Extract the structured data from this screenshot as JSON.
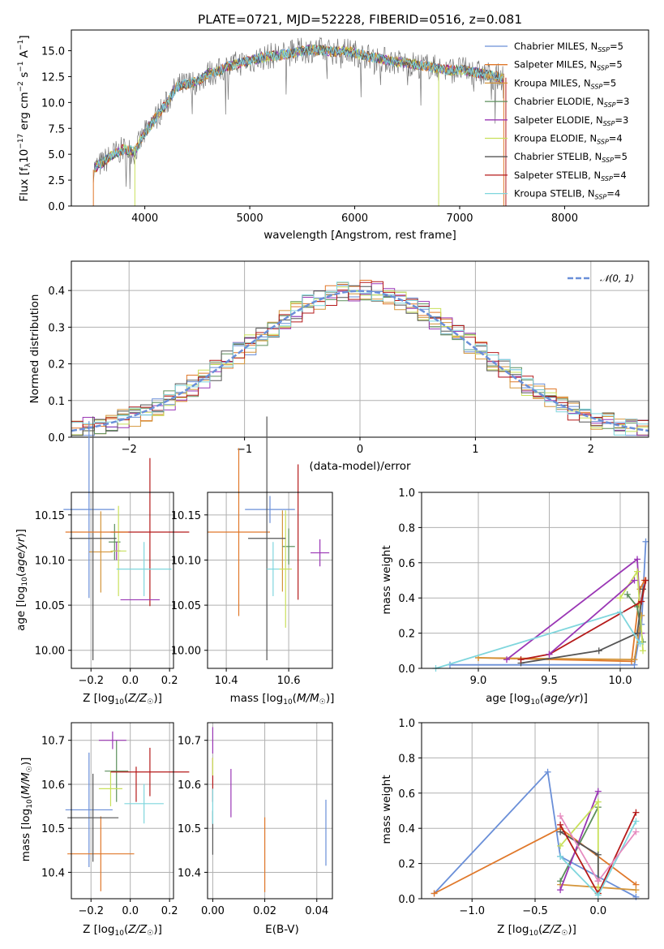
{
  "colors": {
    "axis": "#000000",
    "grid": "#b0b0b0",
    "normal_curve": "#6a8fd8"
  },
  "spectrum_panel": {
    "title": "PLATE=0721, MJD=52228, FIBERID=0516, z=0.081",
    "xlabel": "wavelength [Angstrom, rest frame]",
    "ylabel": "Flux [f_λ 10^-17 erg cm^-2 s^-1 A^-1]",
    "xticks": [
      "4000",
      "5000",
      "6000",
      "7000",
      "8000"
    ],
    "yticks": [
      "0.0",
      "2.5",
      "5.0",
      "7.5",
      "10.0",
      "12.5",
      "15.0"
    ]
  },
  "legend": [
    {
      "model": "Chabrier MILES",
      "n": "5",
      "color": "#6a8fd8"
    },
    {
      "model": "Salpeter MILES",
      "n": "5",
      "color": "#e0782a"
    },
    {
      "model": "Kroupa MILES",
      "n": "5",
      "color": "#d4953a"
    },
    {
      "model": "Chabrier ELODIE",
      "n": "3",
      "color": "#5b8f5b"
    },
    {
      "model": "Salpeter ELODIE",
      "n": "3",
      "color": "#9a36b5"
    },
    {
      "model": "Kroupa ELODIE",
      "n": "4",
      "color": "#c8e05a"
    },
    {
      "model": "Chabrier STELIB",
      "n": "5",
      "color": "#555555"
    },
    {
      "model": "Salpeter STELIB",
      "n": "4",
      "color": "#b51a1a"
    },
    {
      "model": "Kroupa STELIB",
      "n": "4",
      "color": "#7fd6dd"
    }
  ],
  "chart_data": [
    {
      "type": "line",
      "panel": "spectrum",
      "title": "PLATE=0721, MJD=52228, FIBERID=0516, z=0.081",
      "xlabel": "wavelength [Angstrom, rest frame]",
      "ylabel": "Flux [f_λ 10^-17 erg cm^-2 s^-1 A^-1]",
      "xlim": [
        3300,
        8800
      ],
      "ylim": [
        0,
        17
      ],
      "continuum_x": [
        3500,
        3600,
        3700,
        3800,
        3900,
        4000,
        4100,
        4200,
        4300,
        4400,
        4500,
        4600,
        4700,
        4800,
        4900,
        5000,
        5100,
        5200,
        5300,
        5400,
        5500,
        5600,
        5700,
        5800,
        5900,
        6000,
        6100,
        6200,
        6300,
        6400,
        6500,
        6600,
        6700,
        6800,
        6900,
        7000,
        7100,
        7200,
        7300,
        7400
      ],
      "continuum_y": [
        3.5,
        4.2,
        5.0,
        5.5,
        5.2,
        7.0,
        8.5,
        9.8,
        11.5,
        11.8,
        12.0,
        12.8,
        13.0,
        13.5,
        13.8,
        14.0,
        14.3,
        14.5,
        14.6,
        14.8,
        15.0,
        15.1,
        15.0,
        14.9,
        15.0,
        14.8,
        14.5,
        14.3,
        14.1,
        13.9,
        13.8,
        13.6,
        13.5,
        13.3,
        13.1,
        13.2,
        13.0,
        12.8,
        12.6,
        12.4
      ],
      "grid": false
    },
    {
      "type": "line",
      "panel": "residuals",
      "xlabel": "(data-model)/error",
      "ylabel": "Normed distribution",
      "xlim": [
        -2.5,
        2.5
      ],
      "ylim": [
        0,
        0.48
      ],
      "legend": "$\\mathcal{N}(0,1)$",
      "legend_position": "top-right",
      "grid": true
    },
    {
      "type": "scatter",
      "panel": "Z-age",
      "xlabel": "Z [log10(Z/Z☉)]",
      "ylabel": "age [log10(age/yr)]",
      "xlim": [
        -0.3,
        0.22
      ],
      "ylim": [
        9.98,
        10.175
      ],
      "grid": true
    },
    {
      "type": "scatter",
      "panel": "mass-age",
      "xlabel": "mass [log10(M/M☉)]",
      "ylabel": "age [log10(age/yr)]",
      "xlim": [
        10.34,
        10.74
      ],
      "ylim": [
        9.98,
        10.175
      ],
      "grid": true
    },
    {
      "type": "line",
      "panel": "age-massweight",
      "xlabel": "age [log10(age/yr)]",
      "ylabel": "mass weight",
      "xlim": [
        8.6,
        10.2
      ],
      "ylim": [
        0,
        1.0
      ],
      "grid": true
    },
    {
      "type": "scatter",
      "panel": "Z-mass",
      "xlabel": "Z [log10(Z/Z☉)]",
      "ylabel": "mass [log10(M/M☉)]",
      "xlim": [
        -0.3,
        0.22
      ],
      "ylim": [
        10.34,
        10.74
      ],
      "grid": true
    },
    {
      "type": "scatter",
      "panel": "EBV-mass",
      "xlabel": "E(B-V)",
      "ylabel": "",
      "xlim": [
        -0.002,
        0.046
      ],
      "ylim": [
        10.34,
        10.74
      ],
      "grid": true
    },
    {
      "type": "line",
      "panel": "Z-massweight",
      "xlabel": "Z [log10(Z/Z☉)]",
      "ylabel": "mass weight",
      "xlim": [
        -1.4,
        0.4
      ],
      "ylim": [
        0,
        1.0
      ],
      "grid": true
    }
  ],
  "p2": {
    "xticks": [
      "−2",
      "−1",
      "0",
      "1",
      "2"
    ],
    "yticks": [
      "0.0",
      "0.1",
      "0.2",
      "0.3",
      "0.4"
    ],
    "xlabel": "(data-model)/error",
    "ylabel": "Normed distribution",
    "legend_label": "N(0,1)"
  },
  "p3": {
    "xticks": [
      "−0.2",
      "0.0",
      "0.2"
    ],
    "yticks": [
      "10.00",
      "10.05",
      "10.10",
      "10.15"
    ],
    "ylabel": "age [log10(age/yr)]",
    "xlabel": "Z [log10(Z/Z☉)]"
  },
  "p4": {
    "xticks": [
      "10.4",
      "10.6"
    ],
    "yticks": [
      "10.00",
      "10.05",
      "10.10",
      "10.15"
    ],
    "xlabel": "mass [log10(M/M☉)]"
  },
  "p5": {
    "xticks": [
      "9.0",
      "9.5",
      "10.0"
    ],
    "yticks": [
      "0.0",
      "0.2",
      "0.4",
      "0.6",
      "0.8",
      "1.0"
    ],
    "ylabel": "mass weight",
    "xlabel": "age [log10(age/yr)]"
  },
  "p6": {
    "xticks": [
      "−0.2",
      "0.0",
      "0.2"
    ],
    "yticks": [
      "10.4",
      "10.5",
      "10.6",
      "10.7"
    ],
    "ylabel": "mass [log10(M/M☉)]",
    "xlabel": "Z [log10(Z/Z☉)]"
  },
  "p7": {
    "xticks": [
      "0.00",
      "0.02",
      "0.04"
    ],
    "yticks": [
      "10.4",
      "10.5",
      "10.6",
      "10.7"
    ],
    "xlabel": "E(B-V)"
  },
  "p8": {
    "xticks": [
      "−1.0",
      "−0.5",
      "0.0"
    ],
    "yticks": [
      "0.0",
      "0.2",
      "0.4",
      "0.6",
      "0.8",
      "1.0"
    ],
    "ylabel": "mass weight",
    "xlabel": "Z [log10(Z/Z☉)]"
  }
}
